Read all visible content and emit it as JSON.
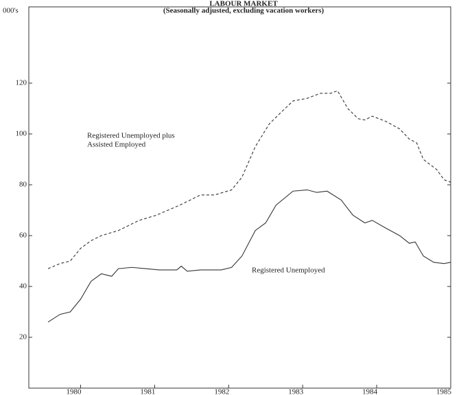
{
  "chart_data": {
    "type": "line",
    "title": "LABOUR MARKET",
    "subtitle": "(Seasonally adjusted, excluding vacation workers)",
    "ylabel": "000's",
    "annotations": [
      "Registered Unemployed plus",
      "Assisted Employed",
      "Registered Unemployed"
    ],
    "xlim": [
      1979.3,
      1985.0
    ],
    "xticks": [
      1980,
      1981,
      1982,
      1983,
      1984,
      1985
    ],
    "ylim": [
      0,
      150
    ],
    "yticks": [
      20,
      40,
      60,
      80,
      100,
      120
    ],
    "grid": false,
    "series": [
      {
        "color": "#333333",
        "dashed": true,
        "x": [
          1979.56,
          1979.72,
          1979.86,
          1980.0,
          1980.14,
          1980.28,
          1980.51,
          1980.79,
          1981.02,
          1981.34,
          1981.62,
          1981.81,
          1982.04,
          1982.18,
          1982.36,
          1982.55,
          1982.69,
          1982.87,
          1983.06,
          1983.24,
          1983.38,
          1983.47,
          1983.61,
          1983.75,
          1983.84,
          1983.94,
          1984.12,
          1984.31,
          1984.44,
          1984.54,
          1984.63,
          1984.81,
          1984.91,
          1985.0
        ],
        "values": [
          47,
          49,
          50,
          55,
          58,
          60,
          62,
          66,
          68,
          72,
          76,
          76,
          78,
          83,
          95,
          104,
          108,
          113,
          114,
          116,
          116,
          117,
          110,
          106,
          105.5,
          107,
          105,
          102,
          98,
          96.5,
          90,
          86,
          82,
          81
        ]
      },
      {
        "color": "#333333",
        "dashed": false,
        "x": [
          1979.56,
          1979.72,
          1979.86,
          1980.0,
          1980.14,
          1980.28,
          1980.42,
          1980.51,
          1980.69,
          1980.88,
          1981.06,
          1981.3,
          1981.36,
          1981.44,
          1981.62,
          1981.9,
          1982.04,
          1982.18,
          1982.36,
          1982.5,
          1982.64,
          1982.87,
          1983.06,
          1983.19,
          1983.33,
          1983.52,
          1983.68,
          1983.84,
          1983.94,
          1984.12,
          1984.31,
          1984.44,
          1984.52,
          1984.63,
          1984.77,
          1984.91,
          1985.0
        ],
        "values": [
          26,
          29,
          30,
          35,
          42,
          45,
          44,
          47,
          47.5,
          47,
          46.5,
          46.5,
          48,
          46,
          46.5,
          46.5,
          47.5,
          52,
          62,
          65,
          72,
          77.5,
          78,
          77,
          77.5,
          74,
          68,
          65,
          66,
          63,
          60,
          57,
          57.5,
          52,
          49.5,
          49,
          49.5
        ]
      }
    ]
  }
}
